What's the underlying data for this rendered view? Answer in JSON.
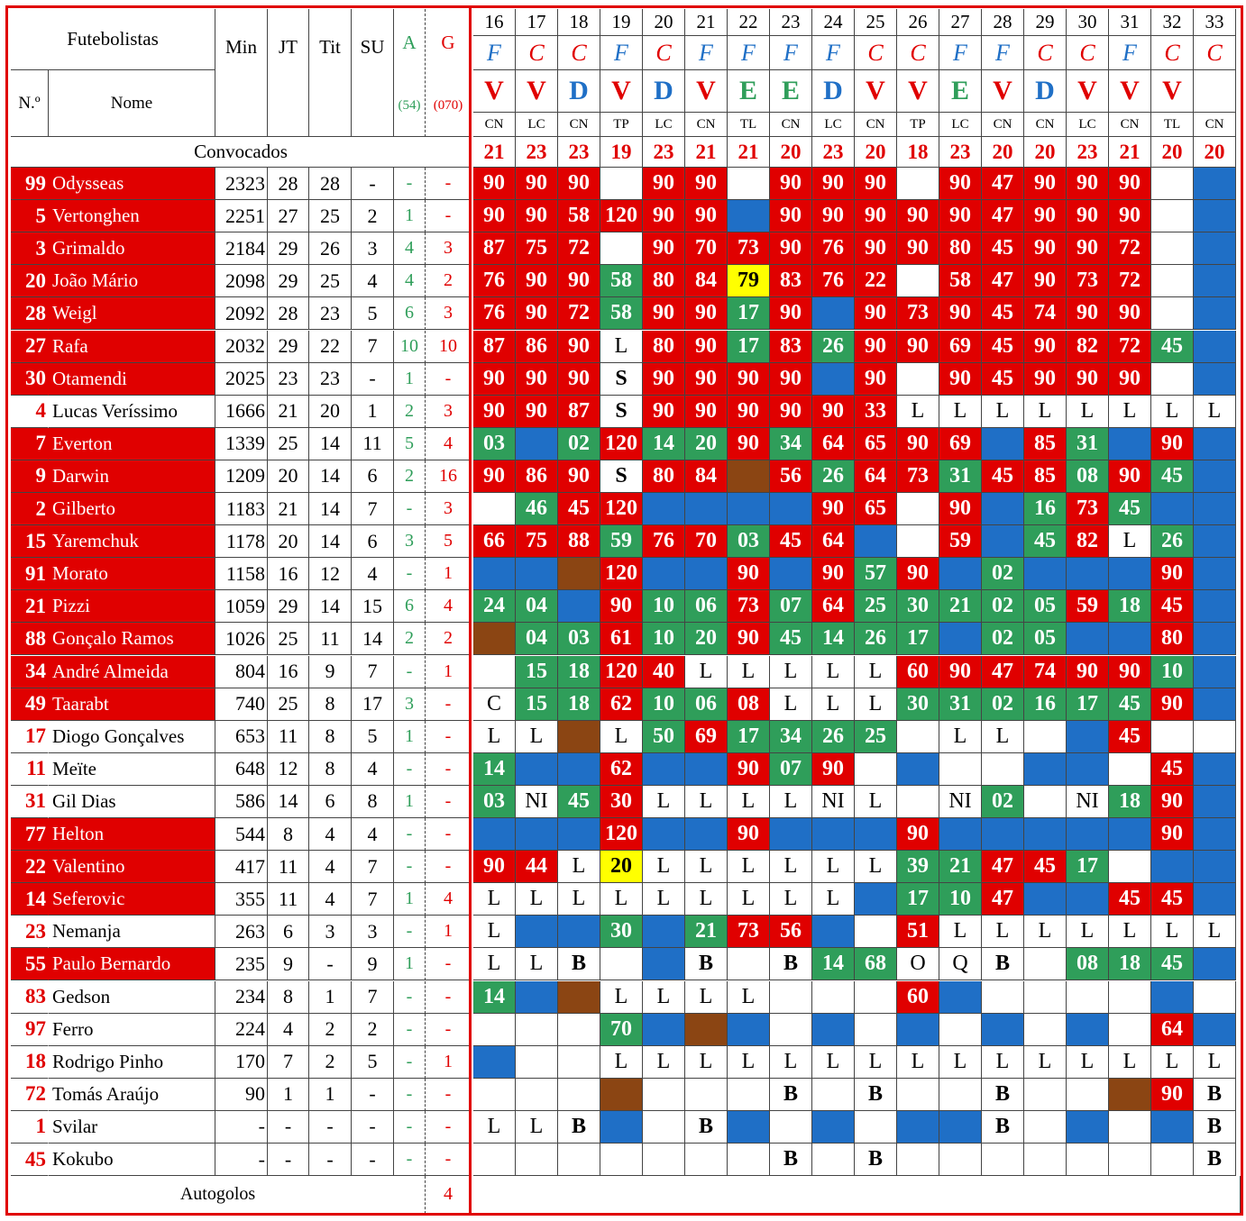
{
  "headers": {
    "futebolistas": "Futebolistas",
    "numero": "N.º",
    "nome": "Nome",
    "min": "Min",
    "jt": "JT",
    "tit": "Tit",
    "su": "SU",
    "a": "A",
    "a_total": "(54)",
    "g": "G",
    "g_total": "(070)",
    "convocados": "Convocados",
    "autogolos": "Autogolos",
    "autogolos_value": "4"
  },
  "colors": {
    "red": "#e00000",
    "green": "#2f9e5a",
    "blue": "#1f6fc6",
    "brown": "#8b4513",
    "yellow": "#ffff00"
  },
  "games": [
    {
      "n": "16",
      "ha": "F",
      "res": "V",
      "comp": "CN",
      "conv": "21"
    },
    {
      "n": "17",
      "ha": "C",
      "res": "V",
      "comp": "LC",
      "conv": "23"
    },
    {
      "n": "18",
      "ha": "C",
      "res": "D",
      "comp": "CN",
      "conv": "23"
    },
    {
      "n": "19",
      "ha": "F",
      "res": "V",
      "comp": "TP",
      "conv": "19"
    },
    {
      "n": "20",
      "ha": "C",
      "res": "D",
      "comp": "LC",
      "conv": "23"
    },
    {
      "n": "21",
      "ha": "F",
      "res": "V",
      "comp": "CN",
      "conv": "21"
    },
    {
      "n": "22",
      "ha": "F",
      "res": "E",
      "comp": "TL",
      "conv": "21"
    },
    {
      "n": "23",
      "ha": "F",
      "res": "E",
      "comp": "CN",
      "conv": "20"
    },
    {
      "n": "24",
      "ha": "F",
      "res": "D",
      "comp": "LC",
      "conv": "23"
    },
    {
      "n": "25",
      "ha": "C",
      "res": "V",
      "comp": "CN",
      "conv": "20"
    },
    {
      "n": "26",
      "ha": "C",
      "res": "V",
      "comp": "TP",
      "conv": "18"
    },
    {
      "n": "27",
      "ha": "F",
      "res": "E",
      "comp": "LC",
      "conv": "23"
    },
    {
      "n": "28",
      "ha": "F",
      "res": "V",
      "comp": "CN",
      "conv": "20"
    },
    {
      "n": "29",
      "ha": "C",
      "res": "D",
      "comp": "CN",
      "conv": "20"
    },
    {
      "n": "30",
      "ha": "C",
      "res": "V",
      "comp": "LC",
      "conv": "23"
    },
    {
      "n": "31",
      "ha": "F",
      "res": "V",
      "comp": "CN",
      "conv": "21"
    },
    {
      "n": "32",
      "ha": "C",
      "res": "V",
      "comp": "TL",
      "conv": "20"
    },
    {
      "n": "33",
      "ha": "C",
      "res": "",
      "comp": "CN",
      "conv": "20"
    }
  ],
  "players": [
    {
      "num": "99",
      "name": "Odysseas",
      "red": true,
      "min": "2323",
      "jt": "28",
      "tit": "28",
      "su": "-",
      "a": "-",
      "g": "-",
      "c": [
        "r90",
        "r90",
        "r90",
        "w",
        "r90",
        "r90",
        "w",
        "r90",
        "r90",
        "r90",
        "w",
        "r90",
        "r47",
        "r90",
        "r90",
        "r90",
        "w",
        "b"
      ]
    },
    {
      "num": "5",
      "name": "Vertonghen",
      "red": true,
      "min": "2251",
      "jt": "27",
      "tit": "25",
      "su": "2",
      "a": "1",
      "g": "-",
      "c": [
        "r90",
        "r90",
        "r58",
        "r120",
        "r90",
        "r90",
        "b",
        "r90",
        "r90",
        "r90",
        "r90",
        "r90",
        "r47",
        "r90",
        "r90",
        "r90",
        "w",
        "b"
      ]
    },
    {
      "num": "3",
      "name": "Grimaldo",
      "red": true,
      "min": "2184",
      "jt": "29",
      "tit": "26",
      "su": "3",
      "a": "4",
      "g": "3",
      "c": [
        "r87",
        "r75",
        "r72",
        "w",
        "r90",
        "r70",
        "r73",
        "r90",
        "r76",
        "r90",
        "r90",
        "r80",
        "r45",
        "r90",
        "r90",
        "r72",
        "w",
        "b"
      ]
    },
    {
      "num": "20",
      "name": "João Mário",
      "red": true,
      "min": "2098",
      "jt": "29",
      "tit": "25",
      "su": "4",
      "a": "4",
      "g": "2",
      "c": [
        "r76",
        "r90",
        "r90",
        "g58",
        "r80",
        "r84",
        "y79",
        "r83",
        "r76",
        "r22",
        "w",
        "r58",
        "r47",
        "r90",
        "r73",
        "r72",
        "w",
        "b"
      ]
    },
    {
      "num": "28",
      "name": "Weigl",
      "red": true,
      "min": "2092",
      "jt": "28",
      "tit": "23",
      "su": "5",
      "a": "6",
      "g": "3",
      "c": [
        "r76",
        "r90",
        "r72",
        "g58",
        "r90",
        "r90",
        "g17",
        "r90",
        "b",
        "r90",
        "r73",
        "r90",
        "r45",
        "r74",
        "r90",
        "r90",
        "w",
        "b"
      ]
    },
    {
      "num": "27",
      "name": "Rafa",
      "red": true,
      "min": "2032",
      "jt": "29",
      "tit": "22",
      "su": "7",
      "a": "10",
      "g": "10",
      "c": [
        "r87",
        "r86",
        "r90",
        "tL",
        "r80",
        "r90",
        "g17",
        "r83",
        "g26",
        "r90",
        "r90",
        "r69",
        "r45",
        "r90",
        "r82",
        "r72",
        "g45",
        "b"
      ]
    },
    {
      "num": "30",
      "name": "Otamendi",
      "red": true,
      "min": "2025",
      "jt": "23",
      "tit": "23",
      "su": "-",
      "a": "1",
      "g": "-",
      "c": [
        "r90",
        "r90",
        "r90",
        "kS",
        "r90",
        "r90",
        "r90",
        "r90",
        "b",
        "r90",
        "w",
        "r90",
        "r45",
        "r90",
        "r90",
        "r90",
        "w",
        "b"
      ]
    },
    {
      "num": "4",
      "name": "Lucas Veríssimo",
      "red": false,
      "min": "1666",
      "jt": "21",
      "tit": "20",
      "su": "1",
      "a": "2",
      "g": "3",
      "c": [
        "r90",
        "r90",
        "r87",
        "kS",
        "r90",
        "r90",
        "r90",
        "r90",
        "r90",
        "r33",
        "tL",
        "tL",
        "tL",
        "tL",
        "tL",
        "tL",
        "tL",
        "tL"
      ]
    },
    {
      "num": "7",
      "name": "Everton",
      "red": true,
      "min": "1339",
      "jt": "25",
      "tit": "14",
      "su": "11",
      "a": "5",
      "g": "4",
      "c": [
        "g03",
        "b",
        "g02",
        "r120",
        "g14",
        "g20",
        "r90",
        "g34",
        "r64",
        "r65",
        "r90",
        "r69",
        "b",
        "r85",
        "g31",
        "b",
        "r90",
        "b"
      ]
    },
    {
      "num": "9",
      "name": "Darwin",
      "red": true,
      "min": "1209",
      "jt": "20",
      "tit": "14",
      "su": "6",
      "a": "2",
      "g": "16",
      "c": [
        "r90",
        "r86",
        "r90",
        "kS",
        "r80",
        "r84",
        "n",
        "r56",
        "g26",
        "r64",
        "r73",
        "g31",
        "r45",
        "r85",
        "g08",
        "r90",
        "g45",
        "b"
      ]
    },
    {
      "num": "2",
      "name": "Gilberto",
      "red": true,
      "min": "1183",
      "jt": "21",
      "tit": "14",
      "su": "7",
      "a": "-",
      "g": "3",
      "c": [
        "w",
        "g46",
        "r45",
        "r120",
        "b",
        "b",
        "b",
        "b",
        "r90",
        "r65",
        "w",
        "r90",
        "b",
        "g16",
        "r73",
        "g45",
        "b",
        "b"
      ]
    },
    {
      "num": "15",
      "name": "Yaremchuk",
      "red": true,
      "min": "1178",
      "jt": "20",
      "tit": "14",
      "su": "6",
      "a": "3",
      "g": "5",
      "c": [
        "r66",
        "r75",
        "r88",
        "g59",
        "r76",
        "r70",
        "g03",
        "r45",
        "r64",
        "b",
        "w",
        "r59",
        "b",
        "g45",
        "r82",
        "tL",
        "g26",
        "b"
      ]
    },
    {
      "num": "91",
      "name": "Morato",
      "red": true,
      "min": "1158",
      "jt": "16",
      "tit": "12",
      "su": "4",
      "a": "-",
      "g": "1",
      "c": [
        "b",
        "b",
        "n",
        "r120",
        "b",
        "b",
        "r90",
        "b",
        "r90",
        "g57",
        "r90",
        "b",
        "g02",
        "b",
        "b",
        "b",
        "r90",
        "b"
      ]
    },
    {
      "num": "21",
      "name": "Pizzi",
      "red": true,
      "min": "1059",
      "jt": "29",
      "tit": "14",
      "su": "15",
      "a": "6",
      "g": "4",
      "c": [
        "g24",
        "g04",
        "b",
        "r90",
        "g10",
        "g06",
        "r73",
        "g07",
        "r64",
        "g25",
        "g30",
        "g21",
        "g02",
        "g05",
        "r59",
        "g18",
        "r45",
        "b"
      ]
    },
    {
      "num": "88",
      "name": "Gonçalo Ramos",
      "red": true,
      "min": "1026",
      "jt": "25",
      "tit": "11",
      "su": "14",
      "a": "2",
      "g": "2",
      "c": [
        "n",
        "g04",
        "g03",
        "r61",
        "g10",
        "g20",
        "r90",
        "g45",
        "g14",
        "g26",
        "g17",
        "b",
        "g02",
        "g05",
        "b",
        "b",
        "r80",
        "b"
      ]
    },
    {
      "num": "34",
      "name": "André Almeida",
      "red": true,
      "min": "804",
      "jt": "16",
      "tit": "9",
      "su": "7",
      "a": "-",
      "g": "1",
      "c": [
        "w",
        "g15",
        "g18",
        "r120",
        "r40",
        "tL",
        "tL",
        "tL",
        "tL",
        "tL",
        "r60",
        "r90",
        "r47",
        "r74",
        "r90",
        "r90",
        "g10",
        "b"
      ]
    },
    {
      "num": "49",
      "name": "Taarabt",
      "red": true,
      "min": "740",
      "jt": "25",
      "tit": "8",
      "su": "17",
      "a": "3",
      "g": "-",
      "c": [
        "tC",
        "g15",
        "g18",
        "r62",
        "g10",
        "g06",
        "r08",
        "tL",
        "tL",
        "tL",
        "g30",
        "g31",
        "g02",
        "g16",
        "g17",
        "g45",
        "r90",
        "b"
      ]
    },
    {
      "num": "17",
      "name": "Diogo Gonçalves",
      "red": false,
      "min": "653",
      "jt": "11",
      "tit": "8",
      "su": "5",
      "a": "1",
      "g": "-",
      "c": [
        "tL",
        "tL",
        "n",
        "tL",
        "g50",
        "r69",
        "g17",
        "g34",
        "g26",
        "g25",
        "w",
        "tL",
        "tL",
        "w",
        "b",
        "r45",
        "w",
        "w"
      ]
    },
    {
      "num": "11",
      "name": "Meïte",
      "red": false,
      "min": "648",
      "jt": "12",
      "tit": "8",
      "su": "4",
      "a": "-",
      "g": "-",
      "c": [
        "g14",
        "b",
        "b",
        "r62",
        "b",
        "b",
        "r90",
        "g07",
        "r90",
        "w",
        "b",
        "w",
        "w",
        "b",
        "b",
        "w",
        "r45",
        "b"
      ]
    },
    {
      "num": "31",
      "name": "Gil Dias",
      "red": false,
      "min": "586",
      "jt": "14",
      "tit": "6",
      "su": "8",
      "a": "1",
      "g": "-",
      "c": [
        "g03",
        "tNI",
        "g45",
        "r30",
        "tL",
        "tL",
        "tL",
        "tL",
        "tNI",
        "tL",
        "w",
        "tNI",
        "g02",
        "w",
        "tNI",
        "g18",
        "r90",
        "b"
      ]
    },
    {
      "num": "77",
      "name": "Helton",
      "red": true,
      "min": "544",
      "jt": "8",
      "tit": "4",
      "su": "4",
      "a": "-",
      "g": "-",
      "c": [
        "b",
        "b",
        "b",
        "r120",
        "b",
        "b",
        "r90",
        "b",
        "b",
        "b",
        "r90",
        "b",
        "b",
        "b",
        "b",
        "b",
        "r90",
        "b"
      ]
    },
    {
      "num": "22",
      "name": "Valentino",
      "red": true,
      "min": "417",
      "jt": "11",
      "tit": "4",
      "su": "7",
      "a": "-",
      "g": "-",
      "c": [
        "r90",
        "r44",
        "tL",
        "y20",
        "tL",
        "tL",
        "tL",
        "tL",
        "tL",
        "tL",
        "g39",
        "g21",
        "r47",
        "r45",
        "g17",
        "w",
        "b",
        "b"
      ]
    },
    {
      "num": "14",
      "name": "Seferovic",
      "red": true,
      "min": "355",
      "jt": "11",
      "tit": "4",
      "su": "7",
      "a": "1",
      "g": "4",
      "c": [
        "tL",
        "tL",
        "tL",
        "tL",
        "tL",
        "tL",
        "tL",
        "tL",
        "tL",
        "b",
        "g17",
        "g10",
        "r47",
        "b",
        "b",
        "r45",
        "r45",
        "b"
      ]
    },
    {
      "num": "23",
      "name": "Nemanja",
      "red": false,
      "min": "263",
      "jt": "6",
      "tit": "3",
      "su": "3",
      "a": "-",
      "g": "1",
      "c": [
        "tL",
        "b",
        "b",
        "g30",
        "b",
        "g21",
        "r73",
        "r56",
        "b",
        "w",
        "r51",
        "tL",
        "tL",
        "tL",
        "tL",
        "tL",
        "tL",
        "tL"
      ]
    },
    {
      "num": "55",
      "name": "Paulo Bernardo",
      "red": true,
      "min": "235",
      "jt": "9",
      "tit": "-",
      "su": "9",
      "a": "1",
      "g": "-",
      "c": [
        "tL",
        "tL",
        "kB",
        "w",
        "b",
        "kB",
        "w",
        "kB",
        "g14",
        "g68",
        "tO",
        "tQ",
        "kB",
        "w",
        "g08",
        "g18",
        "g45",
        "b"
      ]
    },
    {
      "num": "83",
      "name": "Gedson",
      "red": false,
      "min": "234",
      "jt": "8",
      "tit": "1",
      "su": "7",
      "a": "-",
      "g": "-",
      "c": [
        "g14",
        "b",
        "n",
        "tL",
        "tL",
        "tL",
        "tL",
        "w",
        "w",
        "w",
        "r60",
        "b",
        "w",
        "w",
        "w",
        "w",
        "b",
        "w"
      ]
    },
    {
      "num": "97",
      "name": "Ferro",
      "red": false,
      "min": "224",
      "jt": "4",
      "tit": "2",
      "su": "2",
      "a": "-",
      "g": "-",
      "c": [
        "w",
        "w",
        "w",
        "g70",
        "b",
        "n",
        "b",
        "w",
        "b",
        "w",
        "b",
        "w",
        "b",
        "w",
        "b",
        "w",
        "r64",
        "b"
      ]
    },
    {
      "num": "18",
      "name": "Rodrigo Pinho",
      "red": false,
      "min": "170",
      "jt": "7",
      "tit": "2",
      "su": "5",
      "a": "-",
      "g": "1",
      "c": [
        "b",
        "w",
        "w",
        "tL",
        "tL",
        "tL",
        "tL",
        "tL",
        "tL",
        "tL",
        "tL",
        "tL",
        "tL",
        "tL",
        "tL",
        "tL",
        "tL",
        "tL"
      ]
    },
    {
      "num": "72",
      "name": "Tomás Araújo",
      "red": false,
      "min": "90",
      "jt": "1",
      "tit": "1",
      "su": "-",
      "a": "-",
      "g": "-",
      "c": [
        "w",
        "w",
        "w",
        "n",
        "w",
        "w",
        "w",
        "kB",
        "w",
        "kB",
        "w",
        "w",
        "kB",
        "w",
        "w",
        "n",
        "r90",
        "kB"
      ]
    },
    {
      "num": "1",
      "name": "Svilar",
      "red": false,
      "min": "-",
      "jt": "-",
      "tit": "-",
      "su": "-",
      "a": "-",
      "g": "-",
      "c": [
        "tL",
        "tL",
        "kB",
        "b",
        "w",
        "kB",
        "b",
        "w",
        "b",
        "w",
        "b",
        "b",
        "kB",
        "w",
        "b",
        "w",
        "b",
        "kB"
      ]
    },
    {
      "num": "45",
      "name": "Kokubo",
      "red": false,
      "min": "-",
      "jt": "-",
      "tit": "-",
      "su": "-",
      "a": "-",
      "g": "-",
      "c": [
        "w",
        "w",
        "w",
        "w",
        "w",
        "w",
        "w",
        "kB",
        "w",
        "kB",
        "w",
        "w",
        "w",
        "w",
        "w",
        "w",
        "w",
        "kB"
      ]
    }
  ]
}
